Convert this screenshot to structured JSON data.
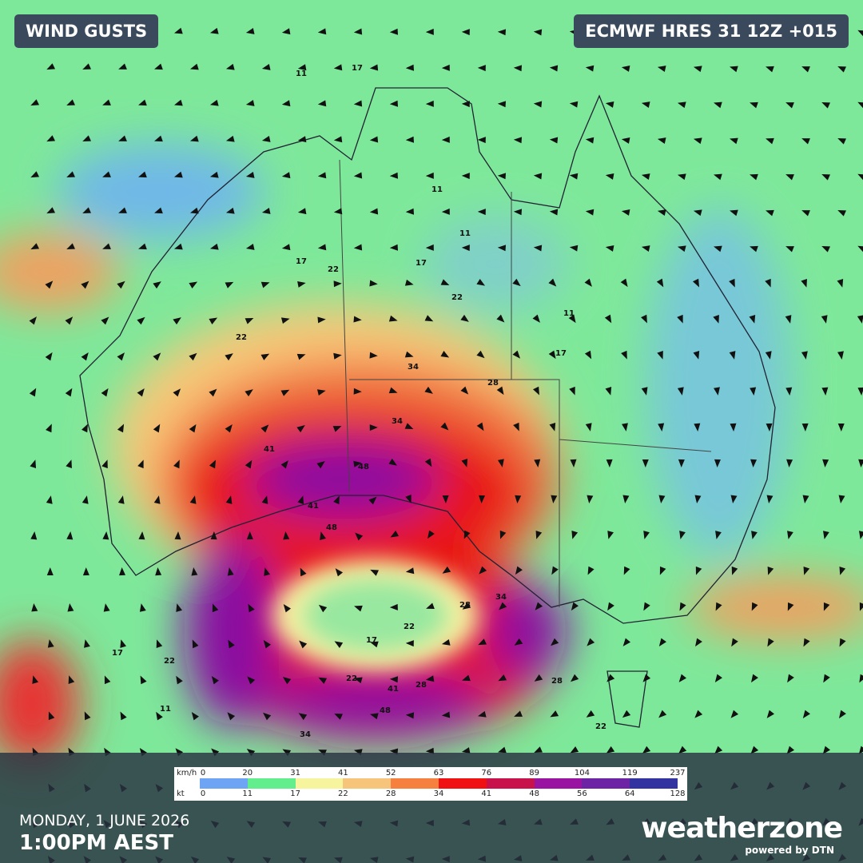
{
  "header": {
    "product": "WIND GUSTS",
    "model": "ECMWF HRES 31 12Z +015"
  },
  "legend": {
    "unit_primary": "km/h",
    "unit_secondary": "kt",
    "primary": [
      0,
      20,
      31,
      41,
      52,
      63,
      76,
      89,
      104,
      119,
      237
    ],
    "secondary": [
      0,
      11,
      17,
      22,
      28,
      34,
      41,
      48,
      56,
      64,
      128
    ],
    "colors": [
      "#6ea4f4",
      "#62ee8c",
      "#f6f49c",
      "#f6c47a",
      "#f6803e",
      "#f01212",
      "#c8124c",
      "#9a14a2",
      "#6c24a4",
      "#3232a0"
    ]
  },
  "map": {
    "contour_labels": [
      17,
      11,
      11,
      17,
      22,
      22,
      17,
      11,
      11,
      17,
      22,
      34,
      34,
      28,
      41,
      48,
      48,
      41,
      34,
      28,
      22,
      17,
      22,
      28,
      41,
      48,
      34,
      28,
      22,
      17,
      11,
      22
    ]
  },
  "footer": {
    "date": "MONDAY, 1 JUNE 2026",
    "time": "1:00PM AEST",
    "brand": "weatherzone",
    "tagline": "powered by DTN"
  }
}
